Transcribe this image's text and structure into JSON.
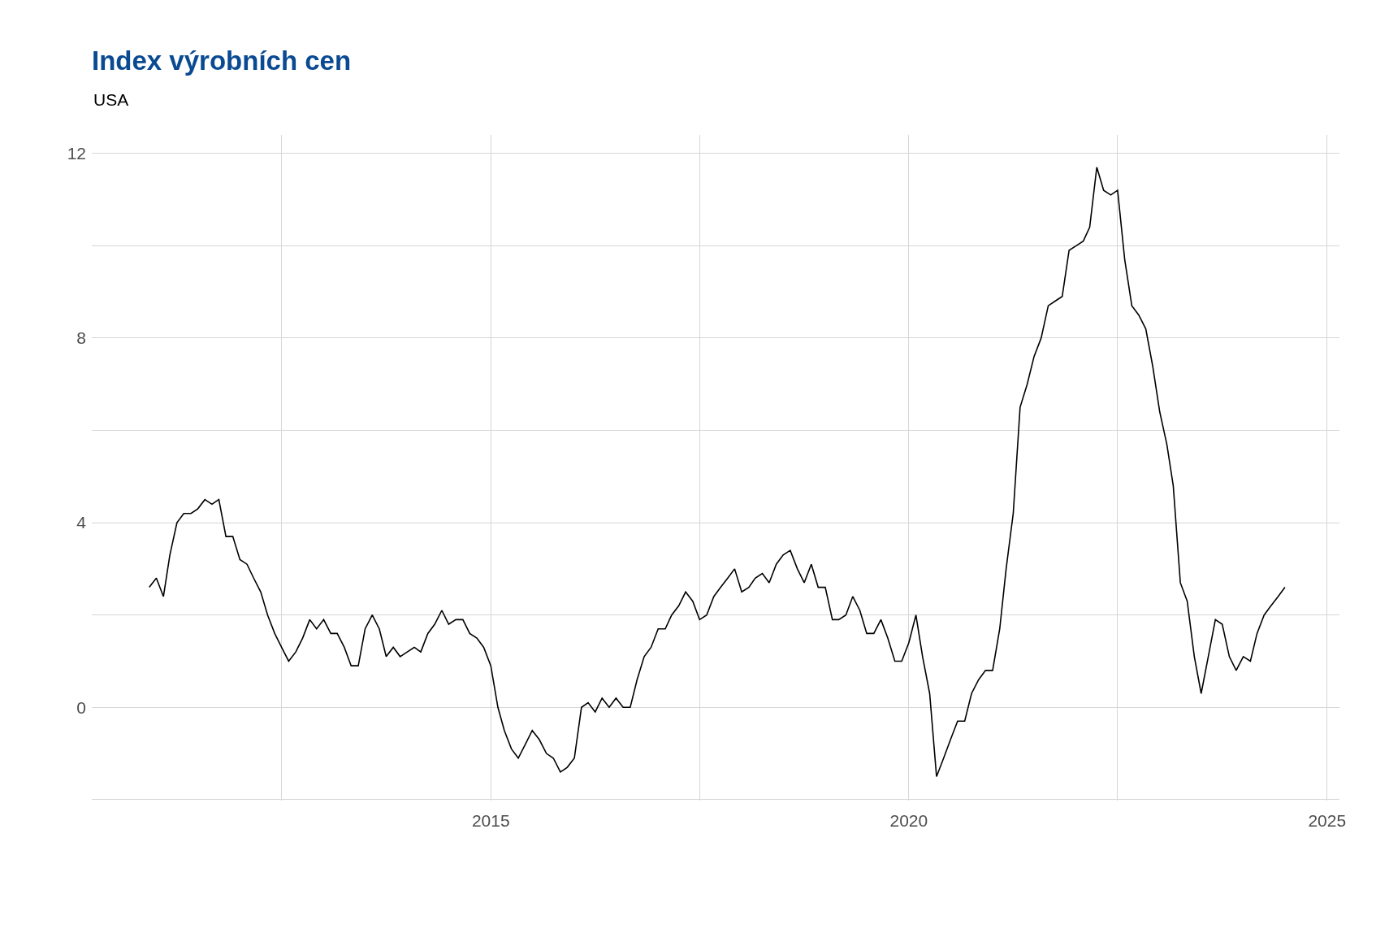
{
  "chart_data": {
    "type": "line",
    "title": "Index výrobních cen",
    "subtitle": "USA",
    "x": [
      "2010-12",
      "2011-01",
      "2011-02",
      "2011-03",
      "2011-04",
      "2011-05",
      "2011-06",
      "2011-07",
      "2011-08",
      "2011-09",
      "2011-10",
      "2011-11",
      "2011-12",
      "2012-01",
      "2012-02",
      "2012-03",
      "2012-04",
      "2012-05",
      "2012-06",
      "2012-07",
      "2012-08",
      "2012-09",
      "2012-10",
      "2012-11",
      "2012-12",
      "2013-01",
      "2013-02",
      "2013-03",
      "2013-04",
      "2013-05",
      "2013-06",
      "2013-07",
      "2013-08",
      "2013-09",
      "2013-10",
      "2013-11",
      "2013-12",
      "2014-01",
      "2014-02",
      "2014-03",
      "2014-04",
      "2014-05",
      "2014-06",
      "2014-07",
      "2014-08",
      "2014-09",
      "2014-10",
      "2014-11",
      "2014-12",
      "2015-01",
      "2015-02",
      "2015-03",
      "2015-04",
      "2015-05",
      "2015-06",
      "2015-07",
      "2015-08",
      "2015-09",
      "2015-10",
      "2015-11",
      "2015-12",
      "2016-01",
      "2016-02",
      "2016-03",
      "2016-04",
      "2016-05",
      "2016-06",
      "2016-07",
      "2016-08",
      "2016-09",
      "2016-10",
      "2016-11",
      "2016-12",
      "2017-01",
      "2017-02",
      "2017-03",
      "2017-04",
      "2017-05",
      "2017-06",
      "2017-07",
      "2017-08",
      "2017-09",
      "2017-10",
      "2017-11",
      "2017-12",
      "2018-01",
      "2018-02",
      "2018-03",
      "2018-04",
      "2018-05",
      "2018-06",
      "2018-07",
      "2018-08",
      "2018-09",
      "2018-10",
      "2018-11",
      "2018-12",
      "2019-01",
      "2019-02",
      "2019-03",
      "2019-04",
      "2019-05",
      "2019-06",
      "2019-07",
      "2019-08",
      "2019-09",
      "2019-10",
      "2019-11",
      "2019-12",
      "2020-01",
      "2020-02",
      "2020-03",
      "2020-04",
      "2020-05",
      "2020-06",
      "2020-07",
      "2020-08",
      "2020-09",
      "2020-10",
      "2020-11",
      "2020-12",
      "2021-01",
      "2021-02",
      "2021-03",
      "2021-04",
      "2021-05",
      "2021-06",
      "2021-07",
      "2021-08",
      "2021-09",
      "2021-10",
      "2021-11",
      "2021-12",
      "2022-01",
      "2022-02",
      "2022-03",
      "2022-04",
      "2022-05",
      "2022-06",
      "2022-07",
      "2022-08",
      "2022-09",
      "2022-10",
      "2022-11",
      "2022-12",
      "2023-01",
      "2023-02",
      "2023-03",
      "2023-04",
      "2023-05",
      "2023-06",
      "2023-07",
      "2023-08",
      "2023-09",
      "2023-10",
      "2023-11",
      "2023-12",
      "2024-01",
      "2024-02",
      "2024-03",
      "2024-04",
      "2024-05",
      "2024-06",
      "2024-07"
    ],
    "series": [
      {
        "color": "#000000",
        "values": [
          2.6,
          2.8,
          2.4,
          3.3,
          4.0,
          4.2,
          4.2,
          4.3,
          4.5,
          4.4,
          4.5,
          3.7,
          3.7,
          3.2,
          3.1,
          2.8,
          2.5,
          2.0,
          1.6,
          1.3,
          1.0,
          1.2,
          1.5,
          1.9,
          1.7,
          1.9,
          1.6,
          1.6,
          1.3,
          0.9,
          0.9,
          1.7,
          2.0,
          1.7,
          1.1,
          1.3,
          1.1,
          1.2,
          1.3,
          1.2,
          1.6,
          1.8,
          2.1,
          1.8,
          1.9,
          1.9,
          1.6,
          1.5,
          1.3,
          0.9,
          0.0,
          -0.5,
          -0.9,
          -1.1,
          -0.8,
          -0.5,
          -0.7,
          -1.0,
          -1.1,
          -1.4,
          -1.3,
          -1.1,
          0.0,
          0.1,
          -0.1,
          0.2,
          0.0,
          0.2,
          0.0,
          0.0,
          0.6,
          1.1,
          1.3,
          1.7,
          1.7,
          2.0,
          2.2,
          2.5,
          2.3,
          1.9,
          2.0,
          2.4,
          2.6,
          2.8,
          3.0,
          2.5,
          2.6,
          2.8,
          2.9,
          2.7,
          3.1,
          3.3,
          3.4,
          3.0,
          2.7,
          3.1,
          2.6,
          2.6,
          1.9,
          1.9,
          2.0,
          2.4,
          2.1,
          1.6,
          1.6,
          1.9,
          1.5,
          1.0,
          1.0,
          1.4,
          2.0,
          1.1,
          0.3,
          -1.5,
          -1.1,
          -0.7,
          -0.3,
          -0.3,
          0.3,
          0.6,
          0.8,
          0.8,
          1.7,
          3.0,
          4.2,
          6.5,
          7.0,
          7.6,
          8.0,
          8.7,
          8.8,
          8.9,
          9.9,
          10.0,
          10.1,
          10.4,
          11.7,
          11.2,
          11.1,
          11.2,
          9.7,
          8.7,
          8.5,
          8.2,
          7.4,
          6.4,
          5.7,
          4.8,
          2.7,
          2.3,
          1.1,
          0.3,
          1.1,
          1.9,
          1.8,
          1.1,
          0.8,
          1.1,
          1.0,
          1.6,
          2.0,
          2.2,
          2.4,
          2.6
        ]
      }
    ],
    "xlim": [
      "2010-03-25",
      "2025-02-24"
    ],
    "xticks": [
      {
        "value": "2012-07-01",
        "label": null
      },
      {
        "value": "2015-01-01",
        "label": "2015"
      },
      {
        "value": "2017-07-01",
        "label": null
      },
      {
        "value": "2020-01-01",
        "label": "2020"
      },
      {
        "value": "2022-07-01",
        "label": null
      },
      {
        "value": "2025-01-01",
        "label": "2025"
      }
    ],
    "ylim": [
      -2.02,
      12.4
    ],
    "yticks": [
      {
        "value": -2,
        "label": null
      },
      0,
      {
        "value": 2,
        "label": null
      },
      4,
      {
        "value": 6,
        "label": null
      },
      8,
      {
        "value": 10,
        "label": null
      },
      12
    ],
    "grid": true,
    "marker": "none",
    "line_style": "solid"
  }
}
